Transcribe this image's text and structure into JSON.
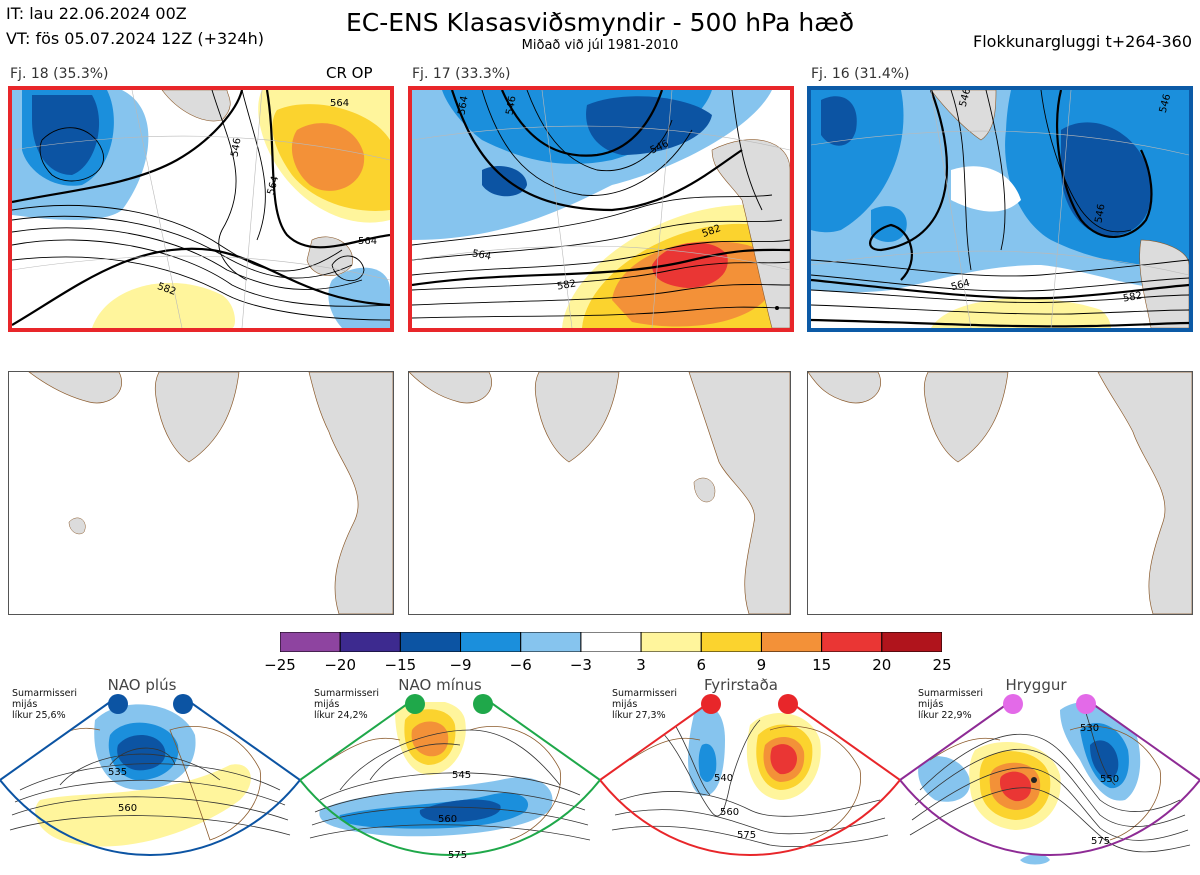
{
  "header": {
    "it_line": "IT: lau 22.06.2024 00Z",
    "vt_line": "VT: fös 05.07.2024 12Z  (+324h)",
    "title": "EC-ENS Klasasviðsmyndir - 500 hPa hæð",
    "subtitle": "Miðað við júl 1981-2010",
    "window": "Flokkunargluggi t+264-360"
  },
  "panels": [
    {
      "label": "Fj. 18 (35.3%)",
      "tag": "CR OP",
      "border": "#e8262a",
      "contours": [
        "564",
        "546",
        "564",
        "564",
        "582"
      ]
    },
    {
      "label": "Fj. 17 (33.3%)",
      "tag": "",
      "border": "#e8262a",
      "contours": [
        "564",
        "546",
        "546",
        "564",
        "582",
        "582"
      ]
    },
    {
      "label": "Fj. 16 (31.4%)",
      "tag": "",
      "border": "#0c5aa6",
      "contours": [
        "546",
        "546",
        "564",
        "582",
        "546"
      ]
    }
  ],
  "colorbar": {
    "ticks": [
      "−25",
      "−20",
      "−15",
      "−9",
      "−6",
      "−3",
      "3",
      "6",
      "9",
      "15",
      "20",
      "25"
    ],
    "colors": [
      "#8e44a0",
      "#3d2a8f",
      "#0c54a3",
      "#1b8fdc",
      "#86c4ee",
      "#ffffff",
      "#fff59c",
      "#fbd32e",
      "#f39138",
      "#ea3634",
      "#b0141c"
    ]
  },
  "regimes": [
    {
      "name": "NAO plús",
      "info": [
        "Sumarmisseri",
        "mijás",
        "líkur 25,6%"
      ],
      "color": "#0c54a3",
      "contours": [
        "535",
        "560"
      ]
    },
    {
      "name": "NAO mínus",
      "info": [
        "Sumarmisseri",
        "mijás",
        "líkur 24,2%"
      ],
      "color": "#1fa84a",
      "contours": [
        "545",
        "560",
        "575"
      ]
    },
    {
      "name": "Fyrirstaða",
      "info": [
        "Sumarmisseri",
        "mijás",
        "líkur 27,3%"
      ],
      "color": "#e8262a",
      "contours": [
        "540",
        "560",
        "575"
      ]
    },
    {
      "name": "Hryggur",
      "info": [
        "Sumarmisseri",
        "mijás",
        "líkur 22,9%"
      ],
      "color": "#e36ae8",
      "contours": [
        "530",
        "550",
        "575"
      ]
    }
  ]
}
